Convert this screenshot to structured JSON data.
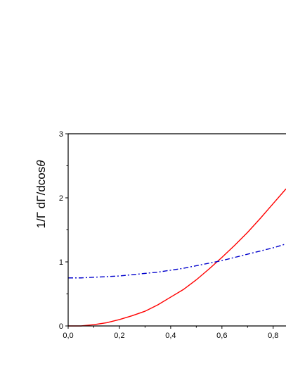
{
  "chart_data": {
    "type": "line",
    "title": "",
    "ylabel_parts": [
      "1/Γ dΓ/dcos",
      "θ"
    ],
    "xlabel": "",
    "xlim": [
      0.0,
      0.85
    ],
    "ylim": [
      0,
      3
    ],
    "x_ticks": [
      {
        "value": 0.0,
        "label": "0,0"
      },
      {
        "value": 0.2,
        "label": "0,2"
      },
      {
        "value": 0.4,
        "label": "0,4"
      },
      {
        "value": 0.6,
        "label": "0,6"
      },
      {
        "value": 0.8,
        "label": "0,8"
      }
    ],
    "y_ticks": [
      {
        "value": 0,
        "label": "0"
      },
      {
        "value": 1,
        "label": "1"
      },
      {
        "value": 2,
        "label": "2"
      },
      {
        "value": 3,
        "label": "3"
      }
    ],
    "grid": false,
    "legend": "none",
    "series": [
      {
        "color": "#ff0000",
        "style": "solid",
        "x": [
          0.0,
          0.05,
          0.1,
          0.15,
          0.2,
          0.25,
          0.3,
          0.35,
          0.4,
          0.45,
          0.5,
          0.55,
          0.6,
          0.65,
          0.7,
          0.75,
          0.8,
          0.85
        ],
        "y": [
          0.0,
          0.0,
          0.02,
          0.05,
          0.1,
          0.16,
          0.23,
          0.33,
          0.45,
          0.57,
          0.72,
          0.89,
          1.07,
          1.26,
          1.46,
          1.68,
          1.91,
          2.14
        ]
      },
      {
        "color": "#0000cc",
        "style": "dashdot",
        "x": [
          0.0,
          0.05,
          0.1,
          0.15,
          0.2,
          0.25,
          0.3,
          0.35,
          0.4,
          0.45,
          0.5,
          0.55,
          0.6,
          0.65,
          0.7,
          0.75,
          0.8,
          0.85
        ],
        "y": [
          0.75,
          0.75,
          0.76,
          0.77,
          0.78,
          0.8,
          0.82,
          0.84,
          0.87,
          0.9,
          0.94,
          0.98,
          1.02,
          1.07,
          1.12,
          1.17,
          1.22,
          1.28
        ]
      }
    ]
  }
}
